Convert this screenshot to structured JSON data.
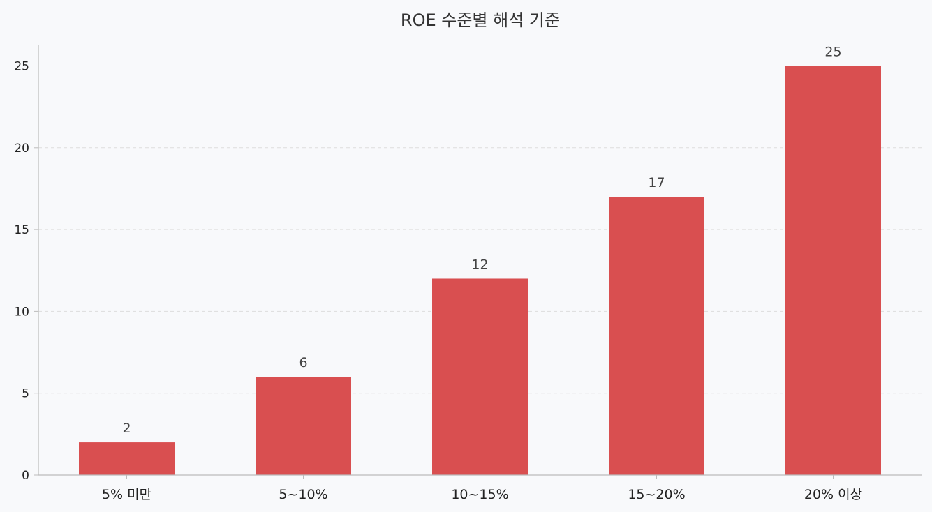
{
  "chart_data": {
    "type": "bar",
    "title": "ROE 수준별 해석 기준",
    "xlabel": "",
    "ylabel": "",
    "categories": [
      "5% 미만",
      "5~10%",
      "10~15%",
      "15~20%",
      "20% 이상"
    ],
    "values": [
      2,
      6,
      12,
      17,
      25
    ],
    "data_labels": [
      "2",
      "6",
      "12",
      "17",
      "25"
    ],
    "ylim": [
      0,
      26.3
    ],
    "yticks": [
      0,
      5,
      10,
      15,
      20,
      25
    ],
    "ytick_labels": [
      "0",
      "5",
      "10",
      "15",
      "20",
      "25"
    ],
    "grid": true,
    "legend": false,
    "colors": {
      "bar": "#d94f50",
      "grid": "#dddddd",
      "axis": "#bbbbbb",
      "background": "#f8f9fb"
    }
  }
}
